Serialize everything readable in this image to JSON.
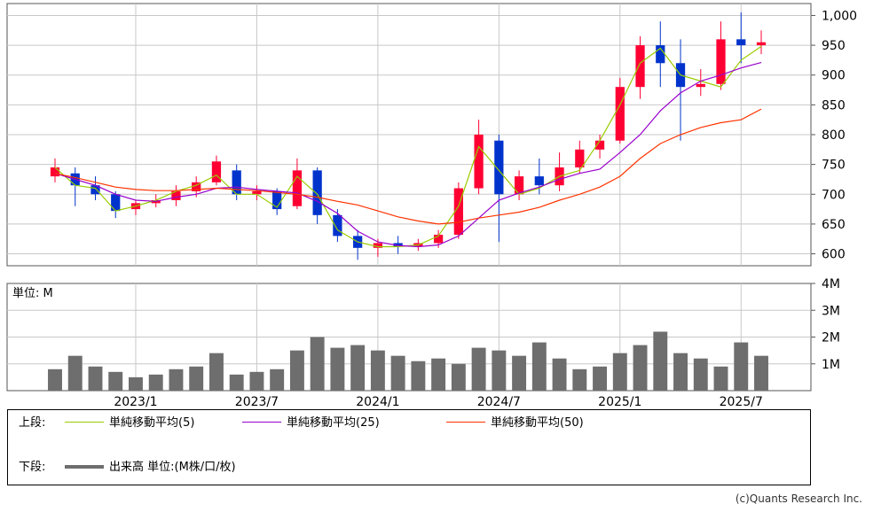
{
  "chart_data": [
    {
      "type": "candlestick",
      "title": "",
      "y_tick_labels": [
        "1,000",
        "950",
        "900",
        "850",
        "800",
        "750",
        "700",
        "650",
        "600"
      ],
      "y_ticks": [
        1000,
        950,
        900,
        850,
        800,
        750,
        700,
        650,
        600
      ],
      "ylim": [
        580,
        1020
      ],
      "x_tick_labels": [
        "2023/1",
        "2023/7",
        "2024/1",
        "2024/7",
        "2025/1",
        "2025/7"
      ],
      "x_ticks": [
        "2023-01",
        "2023-07",
        "2024-01",
        "2024-07",
        "2025-01",
        "2025-07"
      ],
      "x_range": [
        "2022-09",
        "2025-08"
      ],
      "series": [
        {
          "name": "単純移動平均(5)",
          "color": "#99cc00",
          "points": [
            [
              "2022-09",
              745
            ],
            [
              "2022-10",
              715
            ],
            [
              "2022-11",
              710
            ],
            [
              "2022-12",
              672
            ],
            [
              "2023-01",
              680
            ],
            [
              "2023-02",
              690
            ],
            [
              "2023-03",
              705
            ],
            [
              "2023-04",
              715
            ],
            [
              "2023-05",
              732
            ],
            [
              "2023-06",
              700
            ],
            [
              "2023-07",
              700
            ],
            [
              "2023-08",
              678
            ],
            [
              "2023-09",
              730
            ],
            [
              "2023-10",
              700
            ],
            [
              "2023-11",
              640
            ],
            [
              "2023-12",
              620
            ],
            [
              "2024-01",
              612
            ],
            [
              "2024-02",
              612
            ],
            [
              "2024-03",
              615
            ],
            [
              "2024-04",
              630
            ],
            [
              "2024-05",
              680
            ],
            [
              "2024-06",
              780
            ],
            [
              "2024-07",
              740
            ],
            [
              "2024-08",
              700
            ],
            [
              "2024-09",
              710
            ],
            [
              "2024-10",
              730
            ],
            [
              "2024-11",
              740
            ],
            [
              "2024-12",
              790
            ],
            [
              "2025-01",
              850
            ],
            [
              "2025-02",
              920
            ],
            [
              "2025-03",
              945
            ],
            [
              "2025-04",
              900
            ],
            [
              "2025-05",
              890
            ],
            [
              "2025-06",
              880
            ],
            [
              "2025-07",
              925
            ],
            [
              "2025-08",
              948
            ]
          ]
        },
        {
          "name": "単純移動平均(25)",
          "color": "#9900cc",
          "points": [
            [
              "2022-09",
              735
            ],
            [
              "2022-10",
              725
            ],
            [
              "2022-11",
              715
            ],
            [
              "2022-12",
              700
            ],
            [
              "2023-01",
              690
            ],
            [
              "2023-02",
              688
            ],
            [
              "2023-03",
              695
            ],
            [
              "2023-04",
              700
            ],
            [
              "2023-05",
              710
            ],
            [
              "2023-06",
              712
            ],
            [
              "2023-07",
              708
            ],
            [
              "2023-08",
              705
            ],
            [
              "2023-09",
              702
            ],
            [
              "2023-10",
              688
            ],
            [
              "2023-11",
              668
            ],
            [
              "2023-12",
              638
            ],
            [
              "2024-01",
              620
            ],
            [
              "2024-02",
              614
            ],
            [
              "2024-03",
              612
            ],
            [
              "2024-04",
              615
            ],
            [
              "2024-05",
              630
            ],
            [
              "2024-06",
              660
            ],
            [
              "2024-07",
              690
            ],
            [
              "2024-08",
              702
            ],
            [
              "2024-09",
              712
            ],
            [
              "2024-10",
              725
            ],
            [
              "2024-11",
              735
            ],
            [
              "2024-12",
              742
            ],
            [
              "2025-01",
              770
            ],
            [
              "2025-02",
              800
            ],
            [
              "2025-03",
              840
            ],
            [
              "2025-04",
              870
            ],
            [
              "2025-05",
              890
            ],
            [
              "2025-06",
              900
            ],
            [
              "2025-07",
              912
            ],
            [
              "2025-08",
              921
            ]
          ]
        },
        {
          "name": "単純移動平均(50)",
          "color": "#ff3300",
          "points": [
            [
              "2022-09",
              735
            ],
            [
              "2022-10",
              728
            ],
            [
              "2022-11",
              720
            ],
            [
              "2022-12",
              712
            ],
            [
              "2023-01",
              708
            ],
            [
              "2023-02",
              706
            ],
            [
              "2023-03",
              706
            ],
            [
              "2023-04",
              708
            ],
            [
              "2023-05",
              710
            ],
            [
              "2023-06",
              708
            ],
            [
              "2023-07",
              706
            ],
            [
              "2023-08",
              703
            ],
            [
              "2023-09",
              700
            ],
            [
              "2023-10",
              695
            ],
            [
              "2023-11",
              688
            ],
            [
              "2023-12",
              682
            ],
            [
              "2024-01",
              672
            ],
            [
              "2024-02",
              662
            ],
            [
              "2024-03",
              655
            ],
            [
              "2024-04",
              650
            ],
            [
              "2024-05",
              653
            ],
            [
              "2024-06",
              660
            ],
            [
              "2024-07",
              665
            ],
            [
              "2024-08",
              670
            ],
            [
              "2024-09",
              678
            ],
            [
              "2024-10",
              690
            ],
            [
              "2024-11",
              700
            ],
            [
              "2024-12",
              712
            ],
            [
              "2025-01",
              730
            ],
            [
              "2025-02",
              760
            ],
            [
              "2025-03",
              785
            ],
            [
              "2025-04",
              800
            ],
            [
              "2025-05",
              812
            ],
            [
              "2025-06",
              820
            ],
            [
              "2025-07",
              825
            ],
            [
              "2025-08",
              843
            ]
          ]
        }
      ],
      "candles": [
        {
          "date": "2022-09",
          "o": 730,
          "h": 760,
          "l": 720,
          "c": 745
        },
        {
          "date": "2022-10",
          "o": 735,
          "h": 745,
          "l": 680,
          "c": 715
        },
        {
          "date": "2022-11",
          "o": 715,
          "h": 730,
          "l": 690,
          "c": 700
        },
        {
          "date": "2022-12",
          "o": 700,
          "h": 705,
          "l": 660,
          "c": 672
        },
        {
          "date": "2023-01",
          "o": 675,
          "h": 690,
          "l": 665,
          "c": 685
        },
        {
          "date": "2023-02",
          "o": 685,
          "h": 700,
          "l": 678,
          "c": 690
        },
        {
          "date": "2023-03",
          "o": 690,
          "h": 715,
          "l": 680,
          "c": 705
        },
        {
          "date": "2023-04",
          "o": 705,
          "h": 730,
          "l": 695,
          "c": 720
        },
        {
          "date": "2023-05",
          "o": 720,
          "h": 765,
          "l": 715,
          "c": 755
        },
        {
          "date": "2023-06",
          "o": 740,
          "h": 750,
          "l": 690,
          "c": 700
        },
        {
          "date": "2023-07",
          "o": 700,
          "h": 715,
          "l": 690,
          "c": 705
        },
        {
          "date": "2023-08",
          "o": 705,
          "h": 710,
          "l": 665,
          "c": 675
        },
        {
          "date": "2023-09",
          "o": 680,
          "h": 760,
          "l": 675,
          "c": 740
        },
        {
          "date": "2023-10",
          "o": 740,
          "h": 745,
          "l": 650,
          "c": 665
        },
        {
          "date": "2023-11",
          "o": 665,
          "h": 675,
          "l": 620,
          "c": 630
        },
        {
          "date": "2023-12",
          "o": 630,
          "h": 640,
          "l": 590,
          "c": 610
        },
        {
          "date": "2024-01",
          "o": 610,
          "h": 625,
          "l": 595,
          "c": 618
        },
        {
          "date": "2024-02",
          "o": 618,
          "h": 630,
          "l": 600,
          "c": 612
        },
        {
          "date": "2024-03",
          "o": 612,
          "h": 625,
          "l": 605,
          "c": 618
        },
        {
          "date": "2024-04",
          "o": 618,
          "h": 640,
          "l": 610,
          "c": 632
        },
        {
          "date": "2024-05",
          "o": 632,
          "h": 720,
          "l": 625,
          "c": 710
        },
        {
          "date": "2024-06",
          "o": 710,
          "h": 825,
          "l": 700,
          "c": 800
        },
        {
          "date": "2024-07",
          "o": 790,
          "h": 800,
          "l": 620,
          "c": 700
        },
        {
          "date": "2024-08",
          "o": 700,
          "h": 740,
          "l": 690,
          "c": 730
        },
        {
          "date": "2024-09",
          "o": 730,
          "h": 760,
          "l": 700,
          "c": 715
        },
        {
          "date": "2024-10",
          "o": 715,
          "h": 770,
          "l": 705,
          "c": 745
        },
        {
          "date": "2024-11",
          "o": 745,
          "h": 790,
          "l": 735,
          "c": 775
        },
        {
          "date": "2024-12",
          "o": 775,
          "h": 800,
          "l": 760,
          "c": 790
        },
        {
          "date": "2025-01",
          "o": 790,
          "h": 895,
          "l": 785,
          "c": 880
        },
        {
          "date": "2025-02",
          "o": 880,
          "h": 965,
          "l": 860,
          "c": 950
        },
        {
          "date": "2025-03",
          "o": 950,
          "h": 990,
          "l": 880,
          "c": 920
        },
        {
          "date": "2025-04",
          "o": 920,
          "h": 960,
          "l": 790,
          "c": 880
        },
        {
          "date": "2025-05",
          "o": 880,
          "h": 910,
          "l": 865,
          "c": 885
        },
        {
          "date": "2025-06",
          "o": 885,
          "h": 990,
          "l": 875,
          "c": 960
        },
        {
          "date": "2025-07",
          "o": 960,
          "h": 1005,
          "l": 920,
          "c": 950
        },
        {
          "date": "2025-08",
          "o": 950,
          "h": 975,
          "l": 935,
          "c": 955
        }
      ]
    },
    {
      "type": "bar",
      "title": "",
      "unit_label": "単位: M",
      "y_tick_labels": [
        "4M",
        "3M",
        "2M",
        "1M"
      ],
      "y_ticks": [
        4,
        3,
        2,
        1
      ],
      "ylim": [
        0,
        4
      ],
      "x_tick_labels": [
        "2023/1",
        "2023/7",
        "2024/1",
        "2024/7",
        "2025/1",
        "2025/7"
      ],
      "x_ticks": [
        "2023-01",
        "2023-07",
        "2024-01",
        "2024-07",
        "2025-01",
        "2025-07"
      ],
      "series": [
        {
          "name": "出来高",
          "color": "#6e6e6e",
          "points": [
            [
              "2022-09",
              0.8
            ],
            [
              "2022-10",
              1.3
            ],
            [
              "2022-11",
              0.9
            ],
            [
              "2022-12",
              0.7
            ],
            [
              "2023-01",
              0.5
            ],
            [
              "2023-02",
              0.6
            ],
            [
              "2023-03",
              0.8
            ],
            [
              "2023-04",
              0.9
            ],
            [
              "2023-05",
              1.4
            ],
            [
              "2023-06",
              0.6
            ],
            [
              "2023-07",
              0.7
            ],
            [
              "2023-08",
              0.8
            ],
            [
              "2023-09",
              1.5
            ],
            [
              "2023-10",
              2.0
            ],
            [
              "2023-11",
              1.6
            ],
            [
              "2023-12",
              1.7
            ],
            [
              "2024-01",
              1.5
            ],
            [
              "2024-02",
              1.3
            ],
            [
              "2024-03",
              1.1
            ],
            [
              "2024-04",
              1.2
            ],
            [
              "2024-05",
              1.0
            ],
            [
              "2024-06",
              1.6
            ],
            [
              "2024-07",
              1.5
            ],
            [
              "2024-08",
              1.3
            ],
            [
              "2024-09",
              1.8
            ],
            [
              "2024-10",
              1.2
            ],
            [
              "2024-11",
              0.8
            ],
            [
              "2024-12",
              0.9
            ],
            [
              "2025-01",
              1.4
            ],
            [
              "2025-02",
              1.7
            ],
            [
              "2025-03",
              2.2
            ],
            [
              "2025-04",
              1.4
            ],
            [
              "2025-05",
              1.2
            ],
            [
              "2025-06",
              0.9
            ],
            [
              "2025-07",
              1.8
            ],
            [
              "2025-08",
              1.3
            ]
          ]
        }
      ]
    }
  ],
  "legend": {
    "upper_label": "上段:",
    "lower_label": "下段:",
    "ma5": "単純移動平均(5)",
    "ma25": "単純移動平均(25)",
    "ma50": "単純移動平均(50)",
    "volume": "出来高 単位:(M株/口/枚)",
    "colors": {
      "ma5": "#99cc00",
      "ma25": "#9900cc",
      "ma50": "#ff3300",
      "up": "#ff0033",
      "down": "#0033cc",
      "volume": "#6e6e6e"
    }
  },
  "copyright": "(c)Quants Research Inc."
}
